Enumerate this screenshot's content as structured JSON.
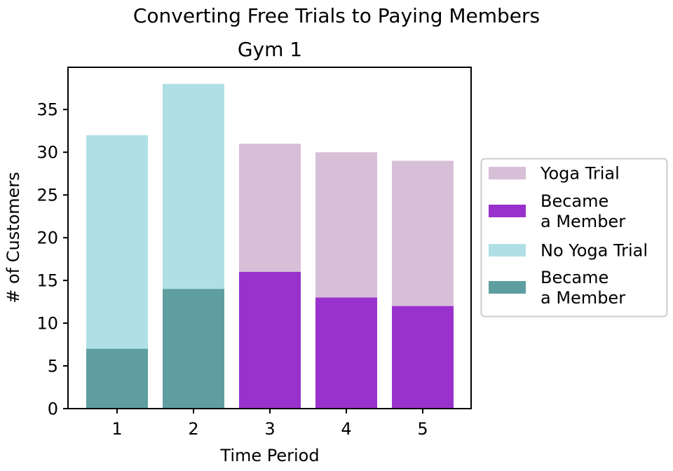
{
  "chart_data": {
    "type": "bar",
    "stacking": "overlay",
    "title": "Converting Free Trials to Paying Members",
    "subtitle": "Gym 1",
    "xlabel": "Time Period",
    "ylabel": "# of Customers",
    "categories": [
      "1",
      "2",
      "3",
      "4",
      "5"
    ],
    "ylim": [
      0,
      40
    ],
    "yticks": [
      0,
      5,
      10,
      15,
      20,
      25,
      30,
      35
    ],
    "grid": false,
    "legend_position": "right",
    "series": [
      {
        "name": "Yoga Trial",
        "color": "#d8bfd8",
        "values": [
          null,
          null,
          31,
          30,
          29
        ]
      },
      {
        "name": "Became\na Member",
        "color": "#9932cc",
        "values": [
          null,
          null,
          16,
          13,
          12
        ]
      },
      {
        "name": "No Yoga Trial",
        "color": "#b0e0e6",
        "values": [
          32,
          38,
          null,
          null,
          null
        ]
      },
      {
        "name": "Became\na Member",
        "color": "#5f9ea0",
        "values": [
          7,
          14,
          null,
          null,
          null
        ]
      }
    ],
    "legend": [
      {
        "lines": [
          "Yoga Trial"
        ],
        "color": "#d8bfd8"
      },
      {
        "lines": [
          "Became",
          "a Member"
        ],
        "color": "#9932cc"
      },
      {
        "lines": [
          "No Yoga Trial"
        ],
        "color": "#b0e0e6"
      },
      {
        "lines": [
          "Became",
          "a Member"
        ],
        "color": "#5f9ea0"
      }
    ]
  }
}
